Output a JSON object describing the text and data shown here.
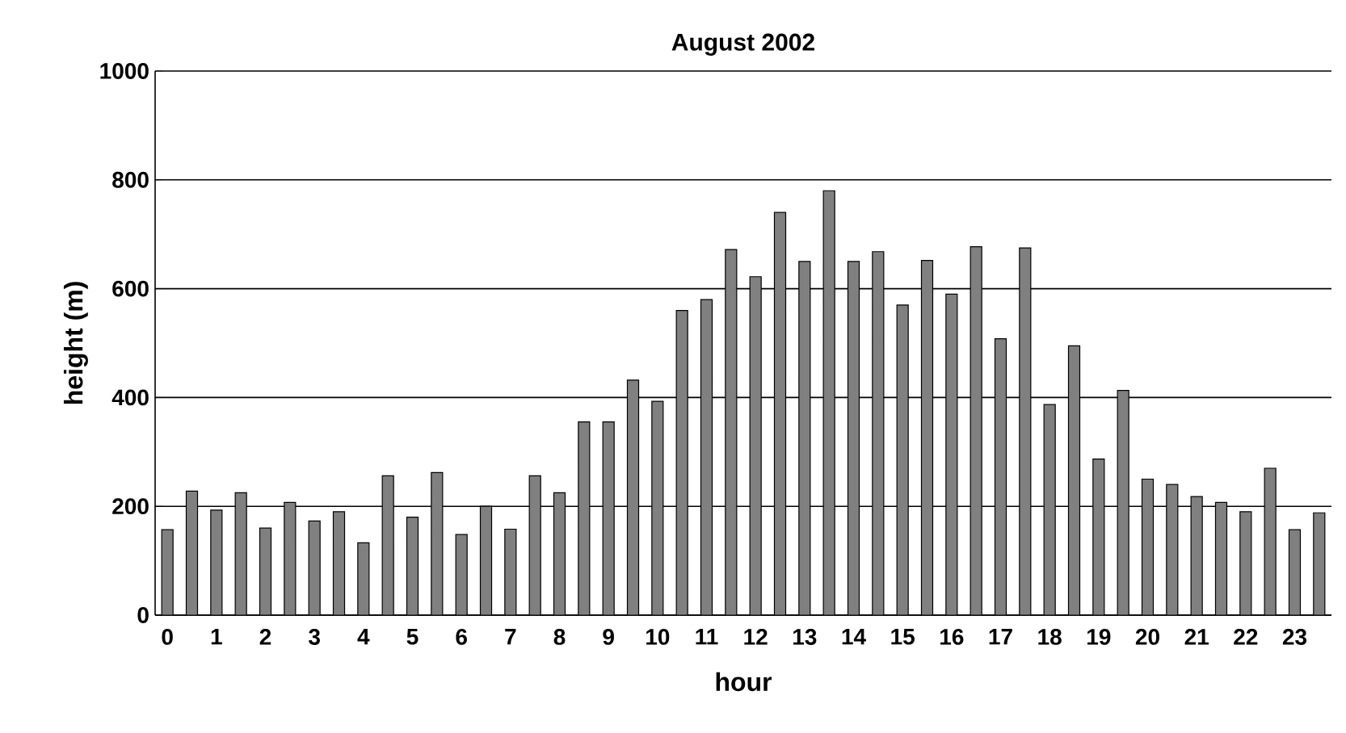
{
  "chart_data": {
    "type": "bar",
    "title": "August 2002",
    "xlabel": "hour",
    "ylabel": "height (m)",
    "categories": [
      "0",
      null,
      "1",
      null,
      "2",
      null,
      "3",
      null,
      "4",
      null,
      "5",
      null,
      "6",
      null,
      "7",
      null,
      "8",
      null,
      "9",
      null,
      "10",
      null,
      "11",
      null,
      "12",
      null,
      "13",
      null,
      "14",
      null,
      "15",
      null,
      "16",
      null,
      "17",
      null,
      "18",
      null,
      "19",
      null,
      "20",
      null,
      "21",
      null,
      "22",
      null,
      "23",
      null
    ],
    "values": [
      157,
      228,
      193,
      225,
      160,
      207,
      173,
      190,
      133,
      256,
      180,
      262,
      148,
      200,
      158,
      256,
      225,
      355,
      355,
      432,
      393,
      560,
      580,
      672,
      622,
      740,
      650,
      780,
      650,
      668,
      570,
      652,
      590,
      677,
      508,
      675,
      387,
      495,
      287,
      413,
      250,
      240,
      218,
      207,
      190,
      270,
      157,
      188
    ],
    "color": "#808080",
    "ylim": [
      0,
      1000
    ],
    "yticks": [
      0,
      200,
      400,
      600,
      800,
      1000
    ],
    "grid": "y"
  }
}
